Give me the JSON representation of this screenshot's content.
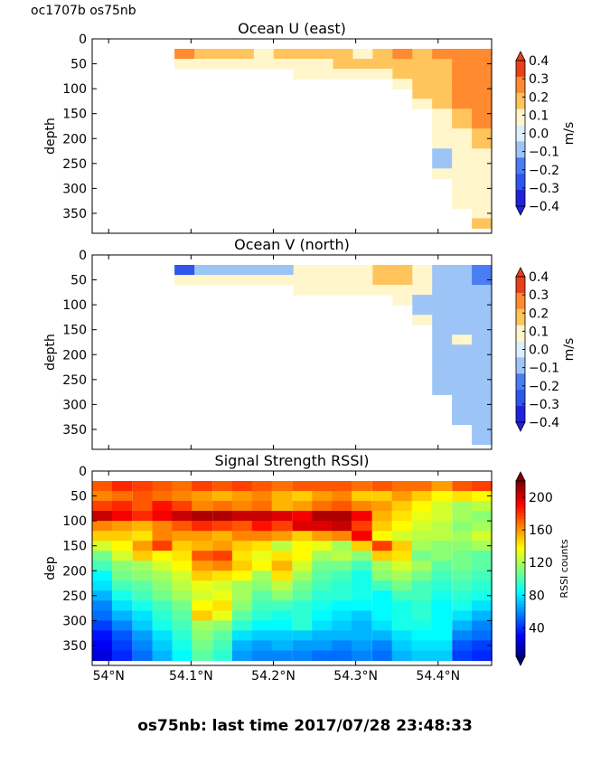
{
  "header": {
    "cruise_label": "oc1707b os75nb"
  },
  "footer": {
    "status": "os75nb: last time 2017/07/28 23:48:33"
  },
  "colors": {
    "u_palette": "jet-diverging",
    "rssi_palette": "jet"
  },
  "chart_data": [
    {
      "type": "heatmap",
      "title": "Ocean U (east)",
      "ylabel": "depth",
      "xlabel": "",
      "ylim": [
        390,
        0
      ],
      "xlim": [
        53.98,
        54.465
      ],
      "yticks": [
        0,
        50,
        100,
        150,
        200,
        250,
        300,
        350
      ],
      "xticks": [
        54.0,
        54.1,
        54.2,
        54.3,
        54.4
      ],
      "colorbar": {
        "label": "m/s",
        "ticks": [
          "0.4",
          "0.3",
          "0.2",
          "0.1",
          "0.0",
          "−0.1",
          "−0.2",
          "−0.3",
          "−0.4"
        ],
        "vmin": -0.4,
        "vmax": 0.4
      },
      "x": [
        54.08,
        54.105,
        54.13,
        54.155,
        54.18,
        54.205,
        54.23,
        54.255,
        54.28,
        54.305,
        54.33,
        54.355,
        54.38,
        54.405,
        54.43,
        54.455
      ],
      "y": [
        30,
        50,
        70,
        90,
        110,
        130,
        150,
        170,
        190,
        210,
        230,
        250,
        270,
        290,
        310,
        330,
        350,
        370
      ],
      "bottom_depth": [
        50,
        50,
        50,
        50,
        50,
        50,
        70,
        70,
        70,
        70,
        70,
        90,
        130,
        270,
        330,
        370
      ],
      "values": [
        [
          0.25,
          0.15,
          0.15,
          0.15,
          0.05,
          0.15,
          0.15,
          0.15,
          0.15,
          0.05,
          0.15,
          0.25,
          0.15,
          0.25,
          0.25,
          0.25
        ],
        [
          0,
          0,
          0,
          0,
          0,
          0,
          0.05,
          0.05,
          0.15,
          0.15,
          0.15,
          0.15,
          0.15,
          0.15,
          0.25,
          0.25
        ],
        [
          0,
          0,
          0,
          0,
          0,
          0,
          0,
          0,
          0,
          0,
          0,
          0.15,
          0.15,
          0.15,
          0.25,
          0.25
        ],
        [
          0,
          0,
          0,
          0,
          0,
          0,
          0,
          0,
          0,
          0,
          0,
          0,
          0.15,
          0.15,
          0.25,
          0.25
        ],
        [
          0,
          0,
          0,
          0,
          0,
          0,
          0,
          0,
          0,
          0,
          0,
          0,
          0.15,
          0.15,
          0.25,
          0.25
        ],
        [
          0,
          0,
          0,
          0,
          0,
          0,
          0,
          0,
          0,
          0,
          0,
          0,
          0,
          0.15,
          0.25,
          0.25
        ],
        [
          0,
          0,
          0,
          0,
          0,
          0,
          0,
          0,
          0,
          0,
          0,
          0,
          0,
          0.05,
          0.15,
          0.25
        ],
        [
          0,
          0,
          0,
          0,
          0,
          0,
          0,
          0,
          0,
          0,
          0,
          0,
          0,
          0.05,
          0.15,
          0.25
        ],
        [
          0,
          0,
          0,
          0,
          0,
          0,
          0,
          0,
          0,
          0,
          0,
          0,
          0,
          0.05,
          0.05,
          0.15
        ],
        [
          0,
          0,
          0,
          0,
          0,
          0,
          0,
          0,
          0,
          0,
          0,
          0,
          0,
          0.05,
          0.05,
          0.15
        ],
        [
          0,
          0,
          0,
          0,
          0,
          0,
          0,
          0,
          0,
          0,
          0,
          0,
          0,
          -0.05,
          0.05,
          0.05
        ],
        [
          0,
          0,
          0,
          0,
          0,
          0,
          0,
          0,
          0,
          0,
          0,
          0,
          0,
          -0.05,
          0.05,
          0.05
        ],
        [
          0,
          0,
          0,
          0,
          0,
          0,
          0,
          0,
          0,
          0,
          0,
          0,
          0,
          0.05,
          0.05,
          0.05
        ],
        [
          0,
          0,
          0,
          0,
          0,
          0,
          0,
          0,
          0,
          0,
          0,
          0,
          0,
          0,
          0.05,
          0.05
        ],
        [
          0,
          0,
          0,
          0,
          0,
          0,
          0,
          0,
          0,
          0,
          0,
          0,
          0,
          0,
          0.05,
          0.05
        ],
        [
          0,
          0,
          0,
          0,
          0,
          0,
          0,
          0,
          0,
          0,
          0,
          0,
          0,
          0,
          0.05,
          0.05
        ],
        [
          0,
          0,
          0,
          0,
          0,
          0,
          0,
          0,
          0,
          0,
          0,
          0,
          0,
          0,
          0,
          0.05
        ],
        [
          0,
          0,
          0,
          0,
          0,
          0,
          0,
          0,
          0,
          0,
          0,
          0,
          0,
          0,
          0,
          0.15
        ]
      ]
    },
    {
      "type": "heatmap",
      "title": "Ocean V (north)",
      "ylabel": "depth",
      "xlabel": "",
      "ylim": [
        390,
        0
      ],
      "xlim": [
        53.98,
        54.465
      ],
      "yticks": [
        0,
        50,
        100,
        150,
        200,
        250,
        300,
        350
      ],
      "xticks": [
        54.0,
        54.1,
        54.2,
        54.3,
        54.4
      ],
      "colorbar": {
        "label": "m/s",
        "ticks": [
          "0.4",
          "0.3",
          "0.2",
          "0.1",
          "0.0",
          "−0.1",
          "−0.2",
          "−0.3",
          "−0.4"
        ],
        "vmin": -0.4,
        "vmax": 0.4
      },
      "x": [
        54.08,
        54.105,
        54.13,
        54.155,
        54.18,
        54.205,
        54.23,
        54.255,
        54.28,
        54.305,
        54.33,
        54.355,
        54.38,
        54.405,
        54.43,
        54.455
      ],
      "y": [
        30,
        50,
        70,
        90,
        110,
        130,
        150,
        170,
        190,
        210,
        230,
        250,
        270,
        290,
        310,
        330,
        350,
        370
      ],
      "bottom_depth": [
        50,
        50,
        50,
        50,
        50,
        50,
        70,
        70,
        70,
        70,
        70,
        90,
        130,
        270,
        330,
        370
      ],
      "values": [
        [
          -0.25,
          -0.05,
          -0.05,
          -0.05,
          -0.05,
          -0.05,
          0.05,
          0.05,
          0.05,
          0.05,
          0.15,
          0.15,
          0.05,
          -0.05,
          -0.05,
          -0.15
        ],
        [
          0,
          0,
          0,
          0,
          0,
          0,
          0.05,
          0.05,
          0.05,
          0.05,
          0.15,
          0.15,
          0.05,
          -0.05,
          -0.05,
          -0.15
        ],
        [
          0,
          0,
          0,
          0,
          0,
          0,
          0,
          0,
          0,
          0,
          0,
          0.05,
          0.05,
          -0.05,
          -0.05,
          -0.05
        ],
        [
          0,
          0,
          0,
          0,
          0,
          0,
          0,
          0,
          0,
          0,
          0,
          0,
          -0.05,
          -0.05,
          -0.05,
          -0.05
        ],
        [
          0,
          0,
          0,
          0,
          0,
          0,
          0,
          0,
          0,
          0,
          0,
          0,
          -0.05,
          -0.05,
          -0.05,
          -0.05
        ],
        [
          0,
          0,
          0,
          0,
          0,
          0,
          0,
          0,
          0,
          0,
          0,
          0,
          0,
          -0.05,
          -0.05,
          -0.05
        ],
        [
          0,
          0,
          0,
          0,
          0,
          0,
          0,
          0,
          0,
          0,
          0,
          0,
          0,
          -0.05,
          -0.05,
          -0.05
        ],
        [
          0,
          0,
          0,
          0,
          0,
          0,
          0,
          0,
          0,
          0,
          0,
          0,
          0,
          -0.05,
          0.05,
          -0.05
        ],
        [
          0,
          0,
          0,
          0,
          0,
          0,
          0,
          0,
          0,
          0,
          0,
          0,
          0,
          -0.05,
          -0.05,
          -0.05
        ],
        [
          0,
          0,
          0,
          0,
          0,
          0,
          0,
          0,
          0,
          0,
          0,
          0,
          0,
          -0.05,
          -0.05,
          -0.05
        ],
        [
          0,
          0,
          0,
          0,
          0,
          0,
          0,
          0,
          0,
          0,
          0,
          0,
          0,
          -0.05,
          -0.05,
          -0.05
        ],
        [
          0,
          0,
          0,
          0,
          0,
          0,
          0,
          0,
          0,
          0,
          0,
          0,
          0,
          -0.05,
          -0.05,
          -0.05
        ],
        [
          0,
          0,
          0,
          0,
          0,
          0,
          0,
          0,
          0,
          0,
          0,
          0,
          0,
          -0.05,
          -0.05,
          -0.05
        ],
        [
          0,
          0,
          0,
          0,
          0,
          0,
          0,
          0,
          0,
          0,
          0,
          0,
          0,
          0,
          -0.05,
          -0.05
        ],
        [
          0,
          0,
          0,
          0,
          0,
          0,
          0,
          0,
          0,
          0,
          0,
          0,
          0,
          0,
          -0.05,
          -0.05
        ],
        [
          0,
          0,
          0,
          0,
          0,
          0,
          0,
          0,
          0,
          0,
          0,
          0,
          0,
          0,
          -0.05,
          -0.05
        ],
        [
          0,
          0,
          0,
          0,
          0,
          0,
          0,
          0,
          0,
          0,
          0,
          0,
          0,
          0,
          0,
          -0.05
        ],
        [
          0,
          0,
          0,
          0,
          0,
          0,
          0,
          0,
          0,
          0,
          0,
          0,
          0,
          0,
          0,
          -0.05
        ]
      ]
    },
    {
      "type": "heatmap",
      "title": "Signal Strength RSSI)",
      "ylabel": "dep",
      "xlabel": "",
      "ylim": [
        390,
        0
      ],
      "xlim": [
        53.98,
        54.465
      ],
      "yticks": [
        0,
        50,
        100,
        150,
        200,
        250,
        300,
        350
      ],
      "xticks": [
        54.0,
        54.1,
        54.2,
        54.3,
        54.4
      ],
      "xticklabels": [
        "54°N",
        "54.1°N",
        "54.2°N",
        "54.3°N",
        "54.4°N"
      ],
      "colorbar": {
        "label": "RSSI counts",
        "ticks": [
          "200",
          "160",
          "120",
          "80",
          "40"
        ],
        "vmin": 5,
        "vmax": 220
      },
      "x": [
        53.98,
        54.004,
        54.029,
        54.053,
        54.077,
        54.101,
        54.126,
        54.15,
        54.174,
        54.198,
        54.223,
        54.247,
        54.271,
        54.295,
        54.32,
        54.344,
        54.368,
        54.392,
        54.417,
        54.441
      ],
      "y": [
        30,
        50,
        70,
        90,
        110,
        130,
        150,
        170,
        190,
        210,
        230,
        250,
        270,
        290,
        310,
        330,
        350,
        370
      ],
      "values": [
        [
          175,
          185,
          180,
          175,
          170,
          180,
          175,
          180,
          175,
          170,
          175,
          175,
          175,
          170,
          175,
          170,
          170,
          160,
          175,
          180
        ],
        [
          165,
          170,
          175,
          170,
          165,
          160,
          155,
          160,
          165,
          155,
          150,
          160,
          165,
          150,
          150,
          160,
          150,
          140,
          145,
          140
        ],
        [
          180,
          185,
          175,
          190,
          180,
          165,
          170,
          165,
          170,
          155,
          160,
          170,
          175,
          165,
          160,
          150,
          140,
          130,
          120,
          125
        ],
        [
          205,
          195,
          185,
          195,
          205,
          210,
          210,
          205,
          205,
          200,
          195,
          210,
          210,
          195,
          155,
          145,
          135,
          130,
          120,
          115
        ],
        [
          165,
          160,
          155,
          165,
          175,
          185,
          180,
          175,
          190,
          180,
          200,
          200,
          205,
          180,
          150,
          140,
          130,
          125,
          115,
          120
        ],
        [
          150,
          150,
          145,
          165,
          160,
          160,
          155,
          165,
          165,
          160,
          150,
          160,
          165,
          195,
          140,
          130,
          125,
          125,
          120,
          130
        ],
        [
          130,
          140,
          160,
          180,
          150,
          155,
          160,
          150,
          145,
          125,
          140,
          135,
          120,
          150,
          180,
          150,
          120,
          115,
          115,
          120
        ],
        [
          110,
          130,
          150,
          140,
          145,
          175,
          180,
          145,
          135,
          145,
          140,
          120,
          125,
          115,
          150,
          145,
          110,
          115,
          110,
          105
        ],
        [
          100,
          115,
          120,
          130,
          140,
          160,
          165,
          150,
          140,
          155,
          130,
          110,
          110,
          100,
          120,
          130,
          120,
          105,
          110,
          105
        ],
        [
          85,
          110,
          115,
          120,
          130,
          150,
          145,
          140,
          120,
          145,
          120,
          105,
          100,
          90,
          115,
          120,
          110,
          100,
          105,
          100
        ],
        [
          80,
          100,
          105,
          115,
          125,
          135,
          130,
          120,
          115,
          125,
          110,
          100,
          95,
          90,
          100,
          110,
          100,
          95,
          100,
          95
        ],
        [
          70,
          90,
          100,
          110,
          120,
          130,
          135,
          120,
          105,
          115,
          105,
          95,
          95,
          90,
          85,
          100,
          100,
          90,
          95,
          90
        ],
        [
          60,
          80,
          90,
          100,
          110,
          140,
          145,
          115,
          100,
          100,
          95,
          90,
          85,
          85,
          85,
          90,
          95,
          85,
          90,
          80
        ],
        [
          55,
          70,
          80,
          95,
          105,
          150,
          135,
          105,
          95,
          90,
          95,
          85,
          80,
          75,
          85,
          90,
          95,
          85,
          80,
          70
        ],
        [
          45,
          60,
          75,
          90,
          100,
          120,
          115,
          95,
          85,
          85,
          95,
          80,
          75,
          70,
          80,
          90,
          90,
          85,
          70,
          60
        ],
        [
          35,
          50,
          65,
          80,
          95,
          115,
          105,
          80,
          75,
          75,
          75,
          70,
          70,
          70,
          70,
          80,
          85,
          85,
          60,
          55
        ],
        [
          30,
          45,
          60,
          75,
          90,
          110,
          100,
          70,
          65,
          70,
          65,
          65,
          60,
          65,
          60,
          75,
          80,
          80,
          50,
          45
        ],
        [
          25,
          40,
          55,
          70,
          85,
          105,
          95,
          65,
          60,
          60,
          60,
          55,
          55,
          60,
          55,
          70,
          75,
          75,
          45,
          40
        ]
      ]
    }
  ]
}
